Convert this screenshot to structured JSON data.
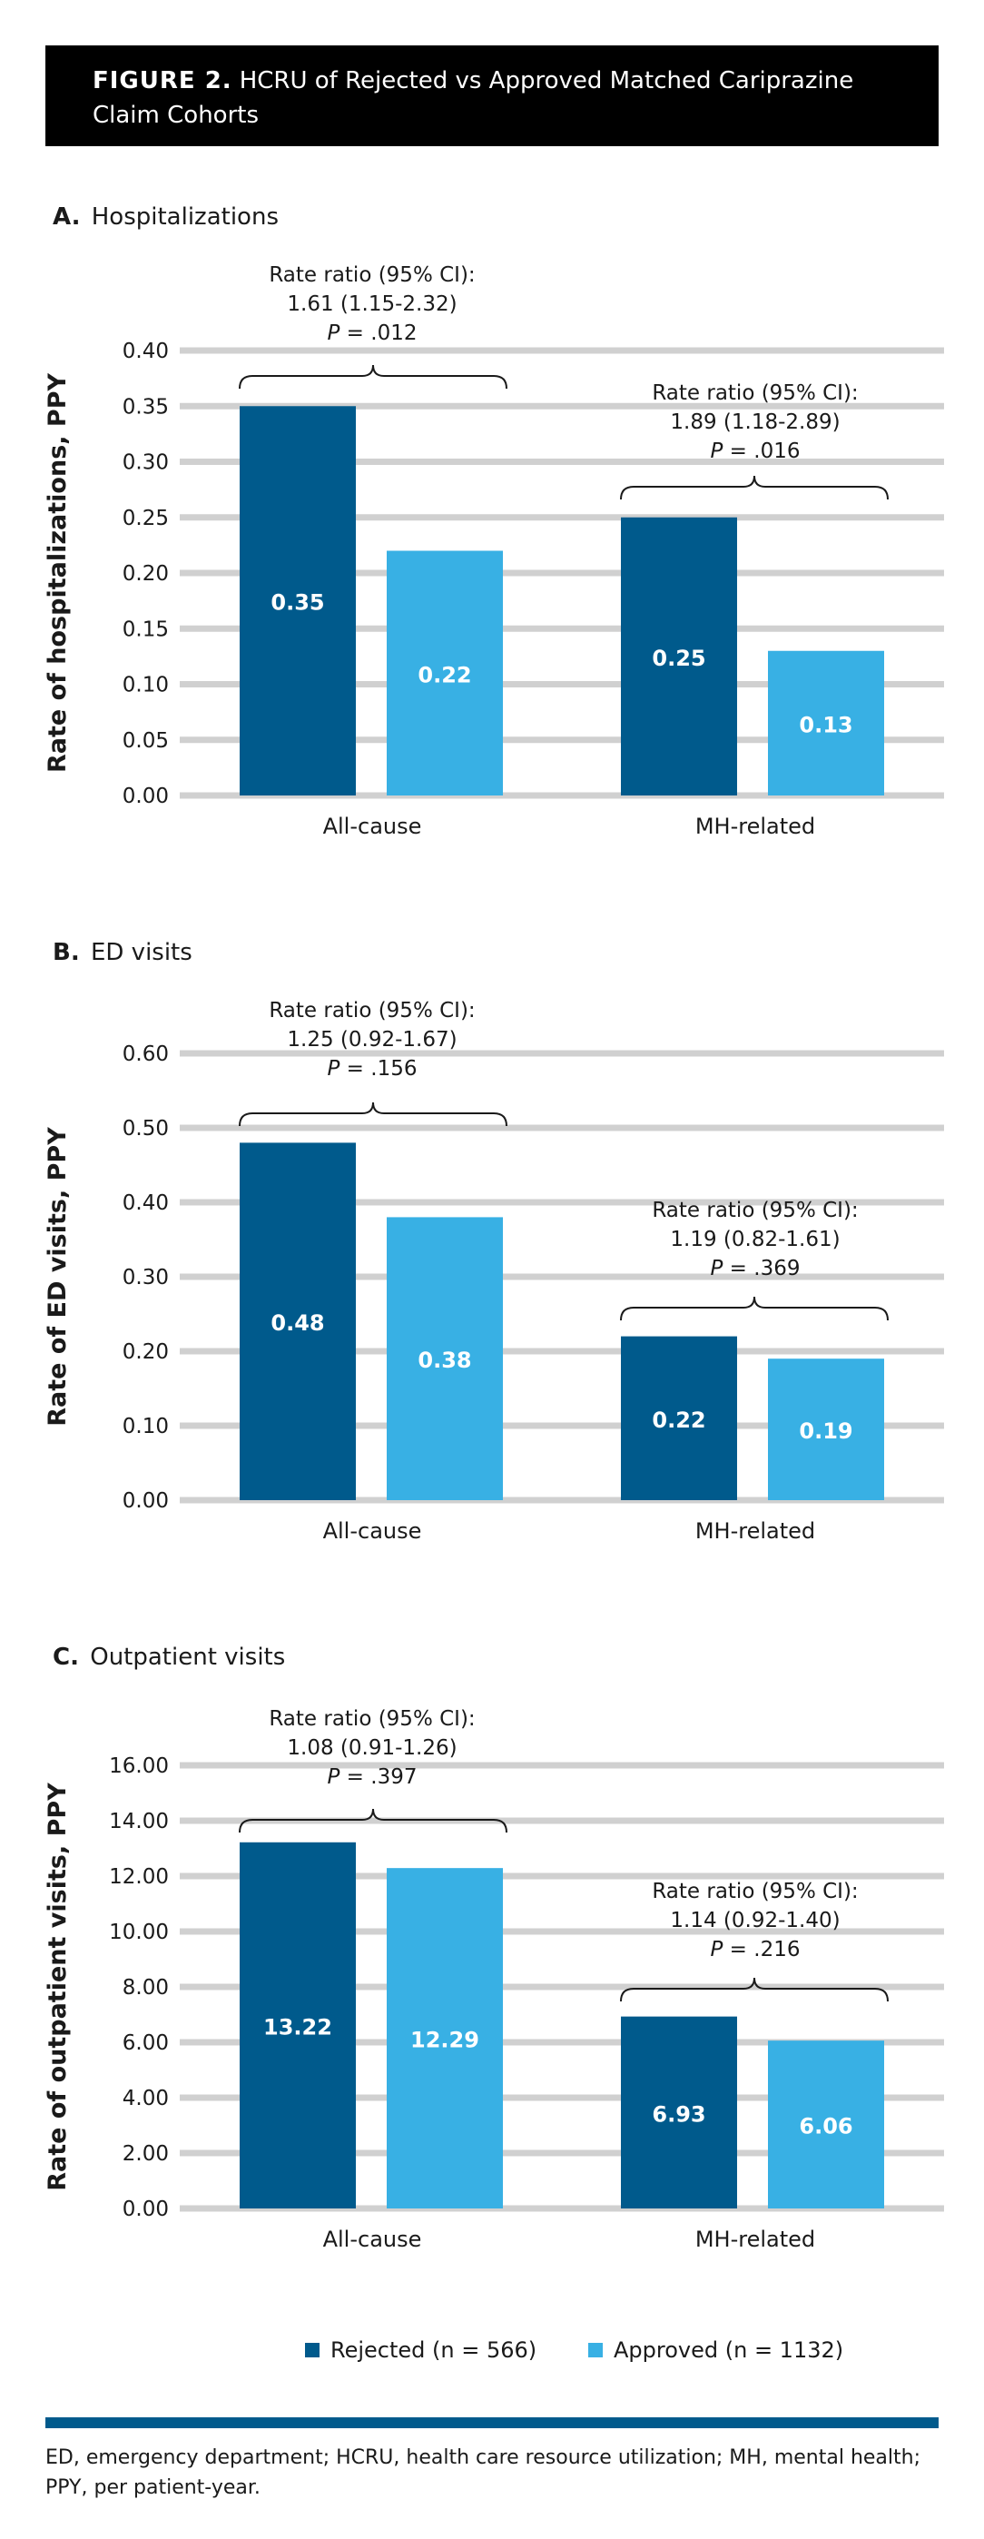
{
  "figure": {
    "label": "FIGURE 2.",
    "title": "HCRU of Rejected vs Approved Matched Cariprazine Claim Cohorts"
  },
  "colors": {
    "rejected": "#005a8c",
    "approved": "#38b0e4",
    "grid": "#d0d0d0",
    "footer_bar": "#005a8c"
  },
  "legend": [
    {
      "label": "Rejected (n = 566)",
      "color": "#005a8c"
    },
    {
      "label": "Approved (n = 1132)",
      "color": "#38b0e4"
    }
  ],
  "chart_data": [
    {
      "type": "bar",
      "panel_letter": "A.",
      "title": "Hospitalizations",
      "ylabel": "Rate of hospitalizations, PPY",
      "ylim": [
        0,
        0.4
      ],
      "yticks": [
        "0.00",
        "0.05",
        "0.10",
        "0.15",
        "0.20",
        "0.25",
        "0.30",
        "0.35",
        "0.40"
      ],
      "categories": [
        "All-cause",
        "MH-related"
      ],
      "series": [
        {
          "name": "Rejected (n = 566)",
          "values": [
            0.35,
            0.25
          ],
          "labels": [
            "0.35",
            "0.25"
          ]
        },
        {
          "name": "Approved (n = 1132)",
          "values": [
            0.22,
            0.13
          ],
          "labels": [
            "0.22",
            "0.13"
          ]
        }
      ],
      "annotations": [
        {
          "line1": "Rate ratio (95% CI):",
          "line2": "1.61 (1.15-2.32)",
          "p_label": "P",
          "p_value": " = .012"
        },
        {
          "line1": "Rate ratio (95% CI):",
          "line2": "1.89 (1.18-2.89)",
          "p_label": "P",
          "p_value": " = .016"
        }
      ],
      "grid": true
    },
    {
      "type": "bar",
      "panel_letter": "B.",
      "title": "ED visits",
      "ylabel": "Rate of ED visits, PPY",
      "ylim": [
        0,
        0.6
      ],
      "yticks": [
        "0.00",
        "0.10",
        "0.20",
        "0.30",
        "0.40",
        "0.50",
        "0.60"
      ],
      "categories": [
        "All-cause",
        "MH-related"
      ],
      "series": [
        {
          "name": "Rejected (n = 566)",
          "values": [
            0.48,
            0.22
          ],
          "labels": [
            "0.48",
            "0.22"
          ]
        },
        {
          "name": "Approved (n = 1132)",
          "values": [
            0.38,
            0.19
          ],
          "labels": [
            "0.38",
            "0.19"
          ]
        }
      ],
      "annotations": [
        {
          "line1": "Rate ratio (95% CI):",
          "line2": "1.25 (0.92-1.67)",
          "p_label": "P",
          "p_value": " = .156"
        },
        {
          "line1": "Rate ratio (95% CI):",
          "line2": "1.19 (0.82-1.61)",
          "p_label": "P",
          "p_value": " = .369"
        }
      ],
      "grid": true
    },
    {
      "type": "bar",
      "panel_letter": "C.",
      "title": "Outpatient visits",
      "ylabel": "Rate of outpatient visits, PPY",
      "ylim": [
        0,
        16
      ],
      "yticks": [
        "0.00",
        "2.00",
        "4.00",
        "6.00",
        "8.00",
        "10.00",
        "12.00",
        "14.00",
        "16.00"
      ],
      "categories": [
        "All-cause",
        "MH-related"
      ],
      "series": [
        {
          "name": "Rejected (n = 566)",
          "values": [
            13.22,
            6.93
          ],
          "labels": [
            "13.22",
            "6.93"
          ]
        },
        {
          "name": "Approved (n = 1132)",
          "values": [
            12.29,
            6.06
          ],
          "labels": [
            "12.29",
            "6.06"
          ]
        }
      ],
      "annotations": [
        {
          "line1": "Rate ratio (95% CI):",
          "line2": "1.08 (0.91-1.26)",
          "p_label": "P",
          "p_value": " = .397"
        },
        {
          "line1": "Rate ratio (95% CI):",
          "line2": "1.14 (0.92-1.40)",
          "p_label": "P",
          "p_value": " = .216"
        }
      ],
      "grid": true
    }
  ],
  "footnote": "ED, emergency department; HCRU, health care resource utilization; MH, mental health; PPY, per patient-year."
}
